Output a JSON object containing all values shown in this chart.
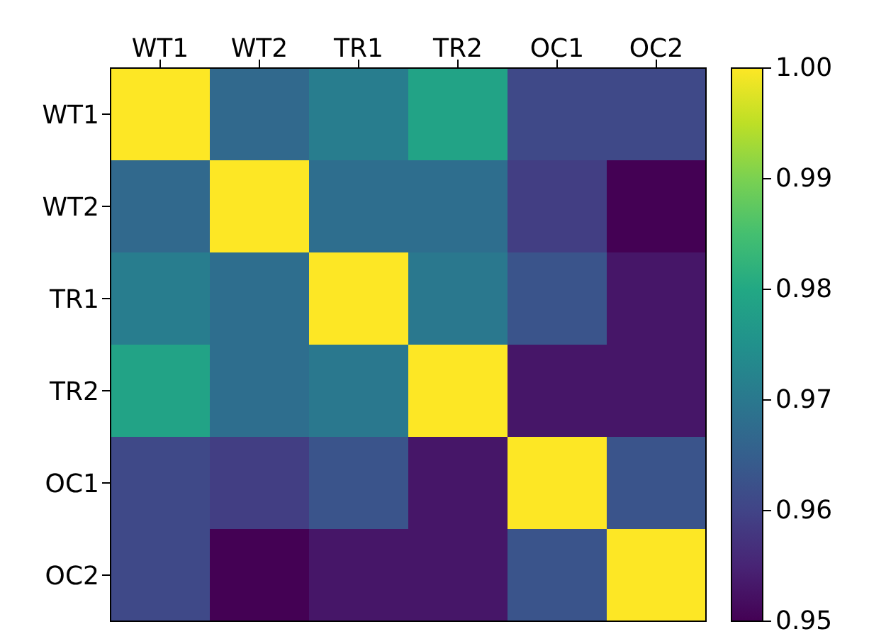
{
  "chart_data": {
    "type": "heatmap",
    "categories": [
      "WT1",
      "WT2",
      "TR1",
      "TR2",
      "OC1",
      "OC2"
    ],
    "y_categories": [
      "WT1",
      "WT2",
      "TR1",
      "TR2",
      "OC1",
      "OC2"
    ],
    "cells": [
      [
        1.0,
        0.967,
        0.971,
        0.979,
        0.961,
        0.961
      ],
      [
        0.967,
        1.0,
        0.968,
        0.968,
        0.959,
        0.95
      ],
      [
        0.971,
        0.968,
        1.0,
        0.97,
        0.963,
        0.953
      ],
      [
        0.979,
        0.968,
        0.97,
        1.0,
        0.953,
        0.953
      ],
      [
        0.961,
        0.959,
        0.963,
        0.953,
        1.0,
        0.963
      ],
      [
        0.961,
        0.95,
        0.953,
        0.953,
        0.963,
        1.0
      ]
    ],
    "clim": [
      0.95,
      1.0
    ],
    "cticks": [
      {
        "value": 0.95,
        "label": "0.95"
      },
      {
        "value": 0.96,
        "label": "0.96"
      },
      {
        "value": 0.97,
        "label": "0.97"
      },
      {
        "value": 0.98,
        "label": "0.98"
      },
      {
        "value": 0.99,
        "label": "0.99"
      },
      {
        "value": 1.0,
        "label": "1.00"
      }
    ]
  }
}
